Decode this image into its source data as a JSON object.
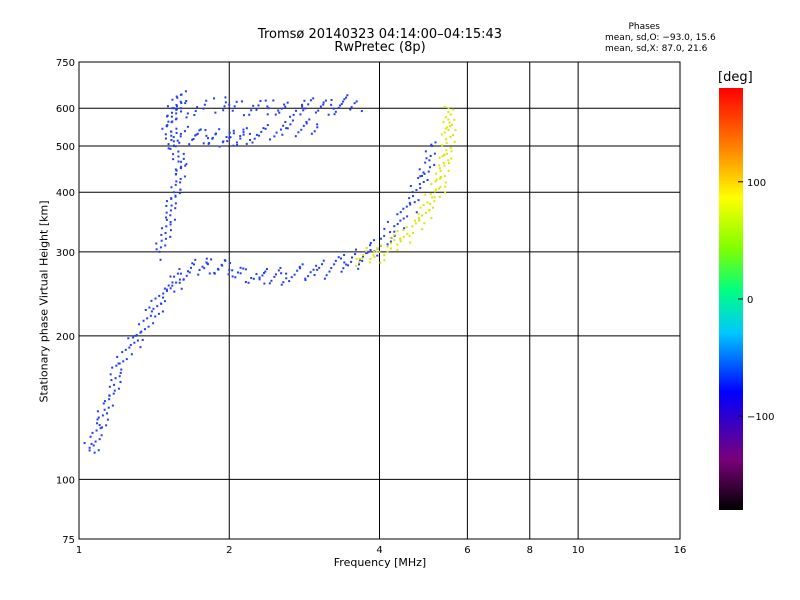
{
  "title_line1": "Tromsø 20140323 04:14:00–04:15:43",
  "title_line2": "RwPretec (8p)",
  "phases": {
    "heading": "Phases",
    "line_o": "mean, sd,O: −93.0, 15.6",
    "line_x": "mean, sd,X:  87.0, 21.6"
  },
  "colorbar": {
    "unit": "[deg]",
    "ticks": [
      100,
      0,
      -100
    ],
    "tick_labels": [
      "100",
      "0",
      "−100"
    ],
    "range": [
      -180,
      180
    ]
  },
  "chart_data": {
    "type": "scatter",
    "xlabel": "Frequency [MHz]",
    "ylabel": "Stationary phase Virtual Height [km]",
    "x_scale": "log",
    "y_scale": "log",
    "xlim": [
      1,
      16
    ],
    "ylim": [
      75,
      750
    ],
    "x_ticks": [
      1,
      2,
      4,
      6,
      8,
      10,
      16
    ],
    "x_tick_labels": [
      "1",
      "2",
      "4",
      "6",
      "8",
      "10",
      "16"
    ],
    "y_ticks": [
      75,
      100,
      200,
      300,
      400,
      500,
      600,
      750
    ],
    "y_tick_labels": [
      "75",
      "100",
      "200",
      "300",
      "400",
      "500",
      "600",
      "750"
    ],
    "grid_x": [
      2,
      4,
      6,
      8,
      10
    ],
    "grid_y": [
      100,
      200,
      300,
      400,
      500,
      600
    ],
    "series": [
      {
        "color": "blue (phase ≈ −100°)",
        "trace": "O-mode low trace",
        "points": [
          [
            1.05,
            115
          ],
          [
            1.1,
            130
          ],
          [
            1.15,
            150
          ],
          [
            1.2,
            175
          ],
          [
            1.3,
            200
          ],
          [
            1.4,
            225
          ],
          [
            1.5,
            250
          ],
          [
            1.6,
            270
          ],
          [
            1.8,
            285
          ],
          [
            2.0,
            275
          ],
          [
            2.3,
            265
          ],
          [
            2.6,
            270
          ],
          [
            3.0,
            275
          ],
          [
            3.4,
            285
          ],
          [
            3.8,
            300
          ],
          [
            4.2,
            330
          ],
          [
            4.6,
            380
          ],
          [
            4.9,
            440
          ],
          [
            5.1,
            500
          ]
        ]
      },
      {
        "color": "blue (phase ≈ −100°)",
        "trace": "O-mode cusp / spread near 1.5 MHz",
        "points": [
          [
            1.45,
            300
          ],
          [
            1.5,
            350
          ],
          [
            1.55,
            400
          ],
          [
            1.6,
            450
          ],
          [
            1.55,
            500
          ],
          [
            1.5,
            550
          ],
          [
            1.55,
            600
          ],
          [
            1.6,
            640
          ]
        ]
      },
      {
        "color": "blue (phase ≈ −100°)",
        "trace": "O-mode upper (second-hop) trace",
        "points": [
          [
            1.6,
            600
          ],
          [
            2.0,
            610
          ],
          [
            2.4,
            600
          ],
          [
            2.8,
            605
          ],
          [
            3.2,
            610
          ],
          [
            3.6,
            620
          ]
        ]
      },
      {
        "color": "blue (phase ≈ −100°)",
        "trace": "upper band near 520 km",
        "points": [
          [
            1.6,
            530
          ],
          [
            1.8,
            525
          ],
          [
            2.0,
            520
          ],
          [
            2.2,
            530
          ],
          [
            2.6,
            545
          ],
          [
            3.0,
            555
          ]
        ]
      },
      {
        "color": "yellow (phase ≈ +100°)",
        "trace": "X-mode trace",
        "points": [
          [
            3.6,
            290
          ],
          [
            4.0,
            300
          ],
          [
            4.4,
            320
          ],
          [
            4.8,
            350
          ],
          [
            5.1,
            390
          ],
          [
            5.3,
            430
          ],
          [
            5.4,
            480
          ],
          [
            5.5,
            540
          ],
          [
            5.5,
            600
          ]
        ]
      }
    ]
  }
}
